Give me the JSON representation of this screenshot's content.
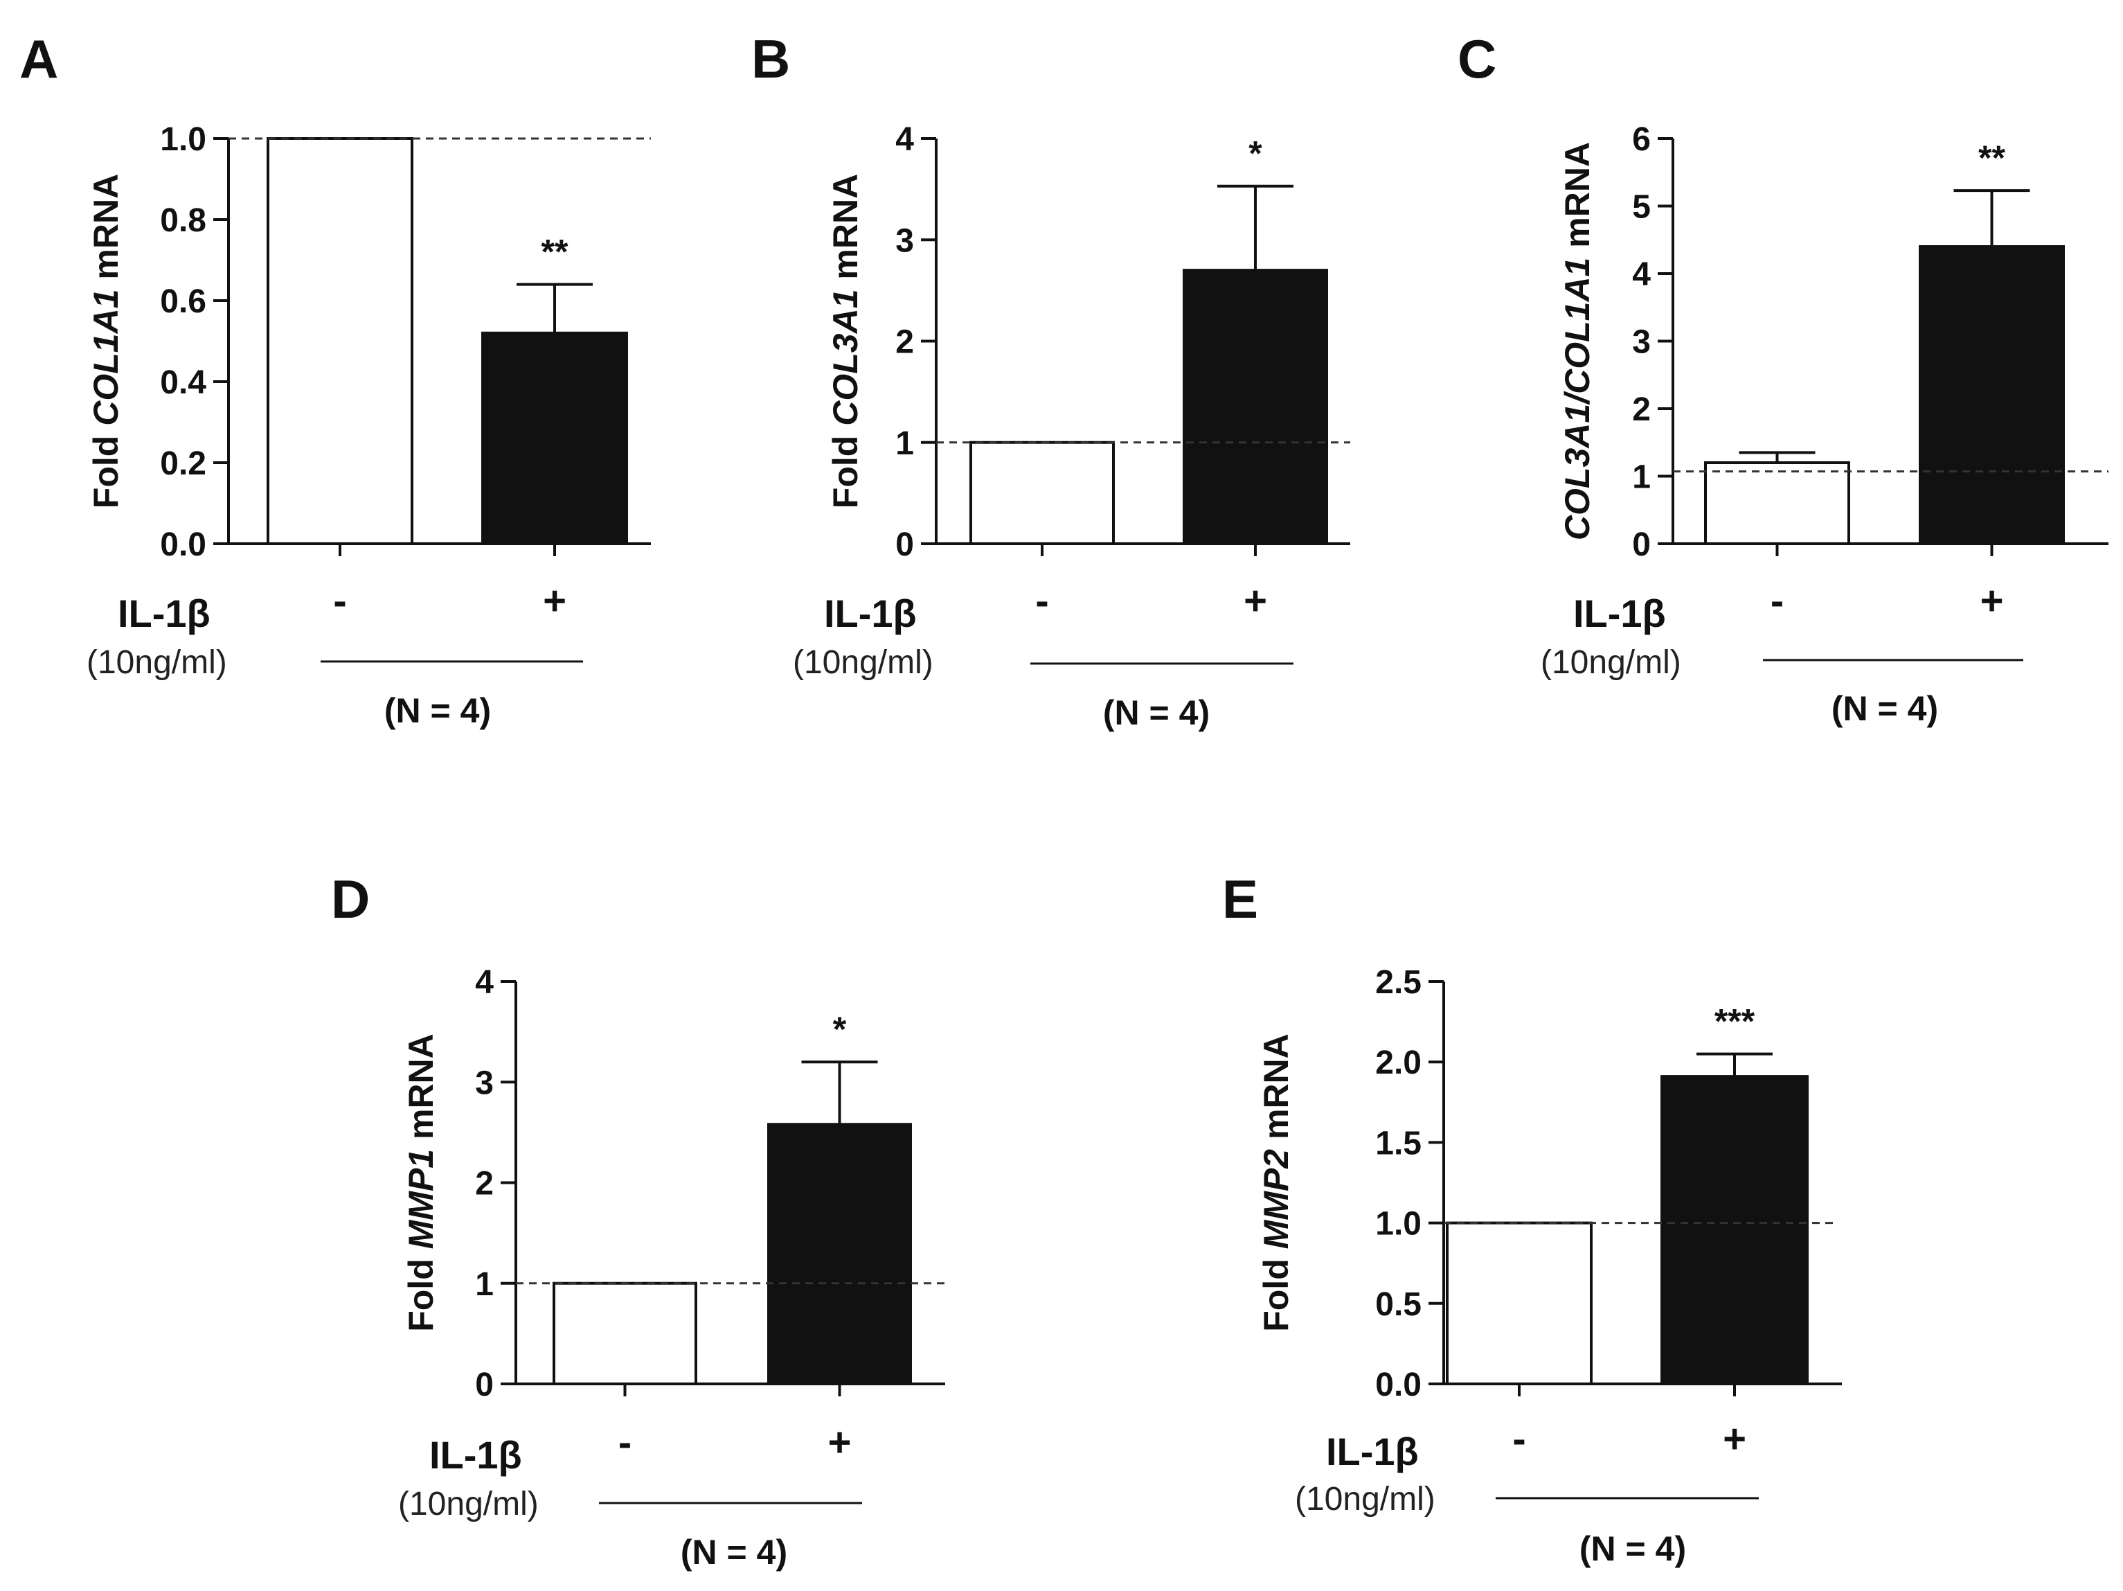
{
  "chart_data": [
    {
      "type": "bar",
      "panel": "A",
      "ylabel": [
        "Fold ",
        "COL1A1",
        " mRNA"
      ],
      "ylim": [
        0,
        1.0
      ],
      "yticks": [
        "0.0",
        "0.2",
        "0.4",
        "0.6",
        "0.8",
        "1.0"
      ],
      "categories": [
        "-",
        "+"
      ],
      "values": [
        1.0,
        0.52
      ],
      "errors": [
        0,
        0.12
      ],
      "reference_line": 1.0,
      "significance": [
        "",
        "**"
      ],
      "treatment_label": "IL-1β",
      "dose_label": "(10ng/ml)",
      "n_label": "(N = 4)",
      "colors": [
        "#ffffff",
        "#111111"
      ]
    },
    {
      "type": "bar",
      "panel": "B",
      "ylabel": [
        "Fold ",
        "COL3A1",
        " mRNA"
      ],
      "ylim": [
        0,
        4
      ],
      "yticks": [
        "0",
        "1",
        "2",
        "3",
        "4"
      ],
      "categories": [
        "-",
        "+"
      ],
      "values": [
        1.0,
        2.7
      ],
      "errors": [
        0,
        0.83
      ],
      "reference_line": 1.0,
      "significance": [
        "",
        "*"
      ],
      "treatment_label": "IL-1β",
      "dose_label": "(10ng/ml)",
      "n_label": "(N = 4)",
      "colors": [
        "#ffffff",
        "#111111"
      ]
    },
    {
      "type": "bar",
      "panel": "C",
      "ylabel": [
        "",
        "COL3A1/COL1A1",
        " mRNA"
      ],
      "ylim": [
        0,
        6
      ],
      "yticks": [
        "0",
        "1",
        "2",
        "3",
        "4",
        "5",
        "6"
      ],
      "categories": [
        "-",
        "+"
      ],
      "values": [
        1.2,
        4.4
      ],
      "errors": [
        0.15,
        0.83
      ],
      "reference_line": 1.07,
      "significance": [
        "",
        "**"
      ],
      "treatment_label": "IL-1β",
      "dose_label": "(10ng/ml)",
      "n_label": "(N = 4)",
      "colors": [
        "#ffffff",
        "#111111"
      ]
    },
    {
      "type": "bar",
      "panel": "D",
      "ylabel": [
        "Fold ",
        "MMP1",
        " mRNA"
      ],
      "ylim": [
        0,
        4
      ],
      "yticks": [
        "0",
        "1",
        "2",
        "3",
        "4"
      ],
      "categories": [
        "-",
        "+"
      ],
      "values": [
        1.0,
        2.58
      ],
      "errors": [
        0,
        0.62
      ],
      "reference_line": 1.0,
      "significance": [
        "",
        "*"
      ],
      "treatment_label": "IL-1β",
      "dose_label": "(10ng/ml)",
      "n_label": "(N = 4)",
      "colors": [
        "#ffffff",
        "#111111"
      ]
    },
    {
      "type": "bar",
      "panel": "E",
      "ylabel": [
        "Fold ",
        "MMP2",
        " mRNA"
      ],
      "ylim": [
        0,
        2.5
      ],
      "yticks": [
        "0.0",
        "0.5",
        "1.0",
        "1.5",
        "2.0",
        "2.5"
      ],
      "categories": [
        "-",
        "+"
      ],
      "values": [
        1.0,
        1.91
      ],
      "errors": [
        0,
        0.14
      ],
      "reference_line": 1.0,
      "significance": [
        "",
        "***"
      ],
      "treatment_label": "IL-1β",
      "dose_label": "(10ng/ml)",
      "n_label": "(N = 4)",
      "colors": [
        "#ffffff",
        "#111111"
      ]
    }
  ]
}
